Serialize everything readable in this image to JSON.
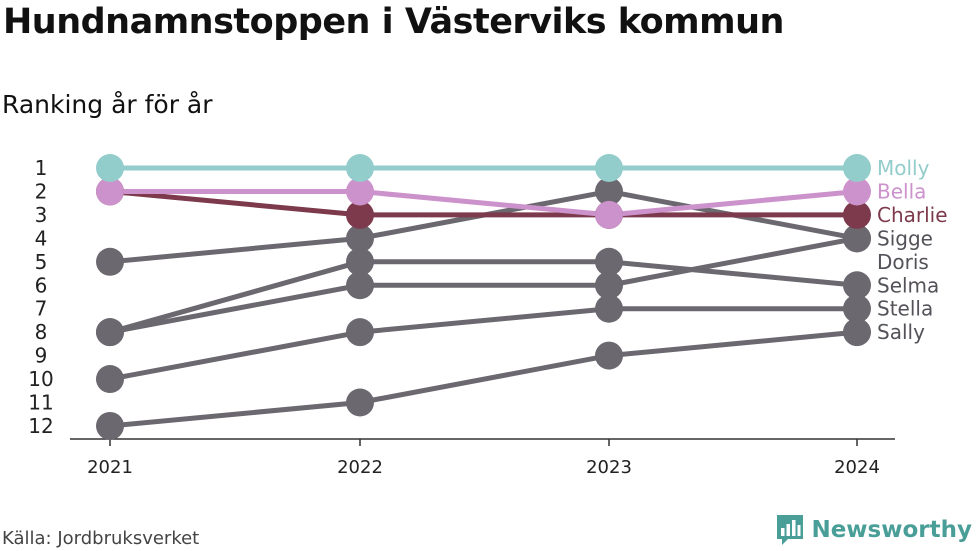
{
  "title": "Hundnamnstoppen i Västerviks kommun",
  "subtitle": "Ranking år för år",
  "source": "Källa: Jordbruksverket",
  "brand": {
    "name": "Newsworthy",
    "color": "#4a9e98"
  },
  "chart_data": {
    "type": "line",
    "x": [
      "2021",
      "2022",
      "2023",
      "2024"
    ],
    "y_ticks": [
      1,
      2,
      3,
      4,
      5,
      6,
      7,
      8,
      9,
      10,
      11,
      12
    ],
    "y_inverted": true,
    "ylim": [
      1,
      12
    ],
    "grid": false,
    "legend": "direct-labels-right",
    "series": [
      {
        "name": "Sally",
        "values": [
          12,
          11,
          9,
          8
        ],
        "color": "#6b6870",
        "label_color": "#555159"
      },
      {
        "name": "Stella",
        "values": [
          10,
          8,
          7,
          7
        ],
        "color": "#6b6870",
        "label_color": "#555159"
      },
      {
        "name": "Selma",
        "values": [
          8,
          5,
          5,
          6
        ],
        "color": "#6b6870",
        "label_color": "#555159"
      },
      {
        "name": "Doris",
        "values": [
          8,
          6,
          6,
          4
        ],
        "color": "#6b6870",
        "label_color": "#555159"
      },
      {
        "name": "Sigge",
        "values": [
          5,
          4,
          2,
          4
        ],
        "color": "#6b6870",
        "label_color": "#555159"
      },
      {
        "name": "Charlie",
        "values": [
          2,
          3,
          3,
          3
        ],
        "color": "#7d3a4c",
        "label_color": "#7d3a4c"
      },
      {
        "name": "Bella",
        "values": [
          2,
          2,
          3,
          2
        ],
        "color": "#cc92cc",
        "label_color": "#cc92cc"
      },
      {
        "name": "Molly",
        "values": [
          1,
          1,
          1,
          1
        ],
        "color": "#92cccb",
        "label_color": "#92cccb"
      }
    ],
    "label_order": [
      "Molly",
      "Bella",
      "Charlie",
      "Sigge",
      "Doris",
      "Selma",
      "Stella",
      "Sally"
    ]
  }
}
